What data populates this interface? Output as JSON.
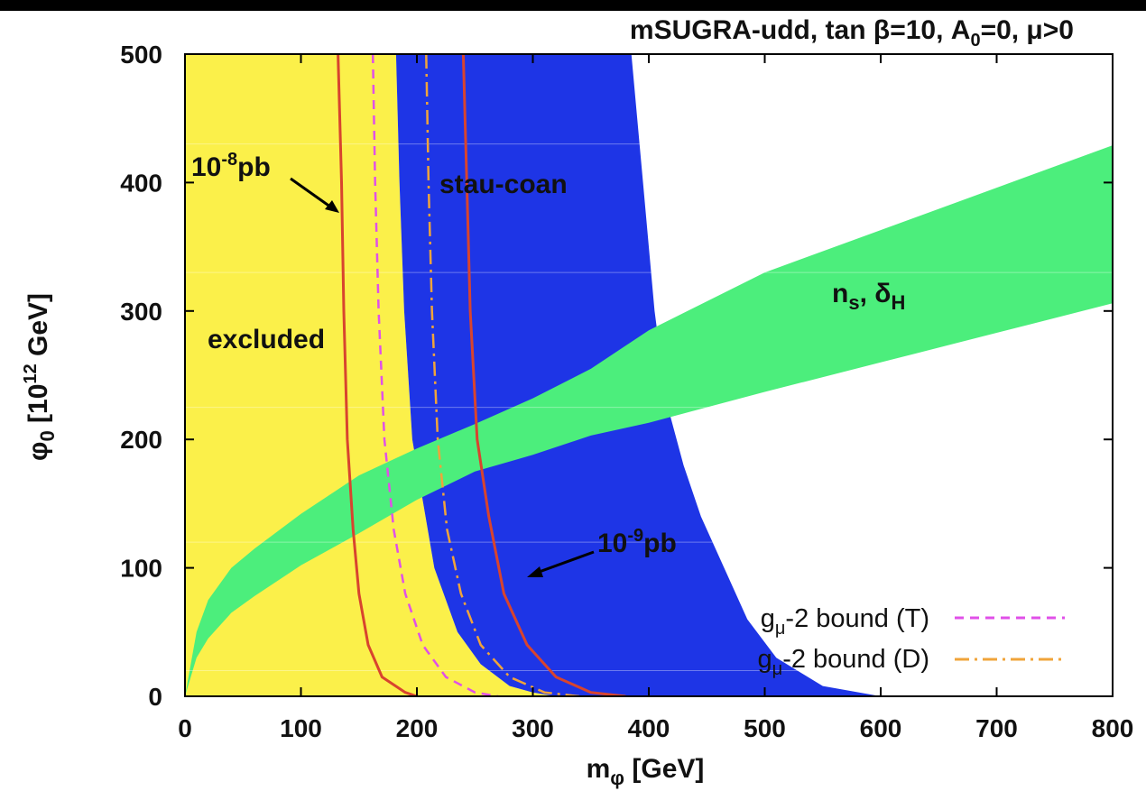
{
  "chart_data": {
    "type": "area",
    "title": "mSUGRA-udd, tan β=10, A₀=0, μ>0",
    "xlabel": "mφ [GeV]",
    "ylabel": "φ₀ [10¹² GeV]",
    "xlim": [
      0,
      800
    ],
    "ylim": [
      0,
      500
    ],
    "xticks": [
      "0",
      "100",
      "200",
      "300",
      "400",
      "500",
      "600",
      "700",
      "800"
    ],
    "yticks": [
      "0",
      "100",
      "200",
      "300",
      "400",
      "500"
    ],
    "grid": "horizontal-faint",
    "colors": {
      "excluded": "#fbf04a",
      "stau_coan": "#1e35e6",
      "ns_deltaH": "#4cee7c",
      "cross_section": "#d8442e",
      "gmu_T": "#e050e8",
      "gmu_D": "#f0a43a"
    },
    "regions": [
      {
        "name": "excluded",
        "label": "excluded",
        "boundary": [
          [
            182,
            500
          ],
          [
            185,
            400
          ],
          [
            189,
            300
          ],
          [
            196,
            200
          ],
          [
            215,
            100
          ],
          [
            235,
            50
          ],
          [
            255,
            25
          ],
          [
            280,
            8
          ],
          [
            300,
            3
          ],
          [
            320,
            0
          ]
        ]
      },
      {
        "name": "stau-coan",
        "label": "stau-coan",
        "left_boundary": [
          [
            182,
            500
          ],
          [
            185,
            400
          ],
          [
            189,
            300
          ],
          [
            196,
            200
          ],
          [
            215,
            100
          ],
          [
            235,
            50
          ],
          [
            255,
            25
          ],
          [
            280,
            8
          ],
          [
            300,
            3
          ],
          [
            320,
            0
          ]
        ],
        "right_boundary": [
          [
            385,
            500
          ],
          [
            395,
            400
          ],
          [
            405,
            300
          ],
          [
            415,
            230
          ],
          [
            430,
            180
          ],
          [
            445,
            140
          ],
          [
            465,
            100
          ],
          [
            485,
            60
          ],
          [
            510,
            30
          ],
          [
            550,
            8
          ],
          [
            600,
            0
          ]
        ]
      },
      {
        "name": "ns-deltaH",
        "label": "nₛ, δH",
        "upper_boundary": [
          [
            0,
            0
          ],
          [
            10,
            50
          ],
          [
            20,
            75
          ],
          [
            40,
            100
          ],
          [
            60,
            115
          ],
          [
            100,
            142
          ],
          [
            150,
            172
          ],
          [
            200,
            193
          ],
          [
            250,
            212
          ],
          [
            300,
            232
          ],
          [
            350,
            255
          ],
          [
            400,
            285
          ],
          [
            500,
            330
          ],
          [
            600,
            363
          ],
          [
            700,
            396
          ],
          [
            800,
            429
          ]
        ],
        "lower_boundary": [
          [
            0,
            0
          ],
          [
            10,
            30
          ],
          [
            20,
            45
          ],
          [
            40,
            65
          ],
          [
            60,
            78
          ],
          [
            100,
            102
          ],
          [
            150,
            127
          ],
          [
            200,
            153
          ],
          [
            250,
            175
          ],
          [
            300,
            188
          ],
          [
            350,
            203
          ],
          [
            400,
            213
          ],
          [
            500,
            237
          ],
          [
            600,
            260
          ],
          [
            700,
            283
          ],
          [
            800,
            306
          ]
        ]
      }
    ],
    "series": [
      {
        "name": "10⁻⁸pb",
        "style": "solid",
        "points": [
          [
            132,
            500
          ],
          [
            135,
            400
          ],
          [
            137,
            300
          ],
          [
            140,
            200
          ],
          [
            145,
            130
          ],
          [
            150,
            80
          ],
          [
            158,
            40
          ],
          [
            170,
            15
          ],
          [
            190,
            3
          ],
          [
            200,
            0
          ]
        ]
      },
      {
        "name": "10⁻⁹pb",
        "style": "solid",
        "points": [
          [
            240,
            500
          ],
          [
            243,
            400
          ],
          [
            246,
            300
          ],
          [
            252,
            200
          ],
          [
            262,
            140
          ],
          [
            275,
            80
          ],
          [
            295,
            40
          ],
          [
            320,
            15
          ],
          [
            350,
            3
          ],
          [
            380,
            0
          ]
        ]
      },
      {
        "name": "gμ-2 bound (T)",
        "style": "dashed",
        "points": [
          [
            162,
            500
          ],
          [
            164,
            400
          ],
          [
            167,
            300
          ],
          [
            172,
            200
          ],
          [
            180,
            130
          ],
          [
            190,
            80
          ],
          [
            205,
            40
          ],
          [
            225,
            15
          ],
          [
            250,
            3
          ],
          [
            270,
            0
          ]
        ]
      },
      {
        "name": "gμ-2 bound (D)",
        "style": "dash-dot",
        "points": [
          [
            208,
            500
          ],
          [
            210,
            400
          ],
          [
            213,
            300
          ],
          [
            218,
            200
          ],
          [
            226,
            130
          ],
          [
            238,
            80
          ],
          [
            255,
            40
          ],
          [
            280,
            15
          ],
          [
            310,
            3
          ],
          [
            340,
            0
          ]
        ]
      }
    ],
    "annotations": [
      {
        "text": "10⁻⁸pb",
        "arrow_to": [
          137,
          420
        ]
      },
      {
        "text": "10⁻⁹pb",
        "arrow_to": [
          278,
          97
        ]
      }
    ],
    "legend": {
      "placement": "bottom-right",
      "entries": [
        {
          "label": "gμ-2 bound (T)",
          "style": "dashed"
        },
        {
          "label": "gμ-2 bound (D)",
          "style": "dash-dot"
        }
      ]
    }
  }
}
